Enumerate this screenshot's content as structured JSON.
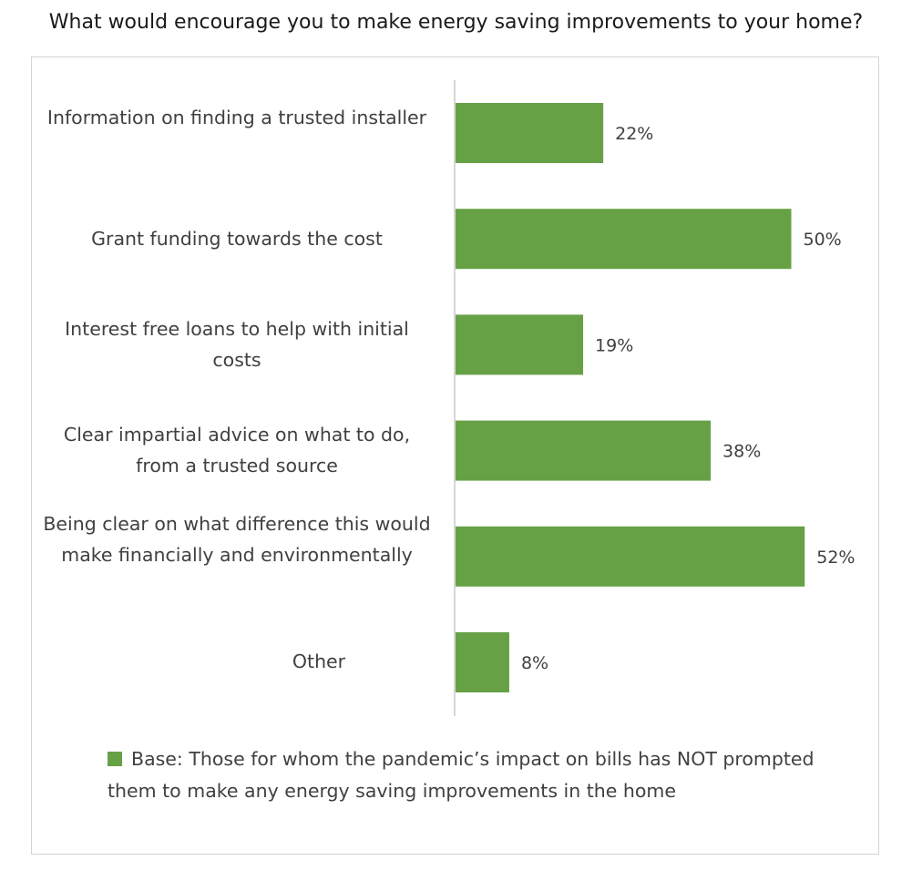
{
  "colors": {
    "bar": "#67a146",
    "axis": "#c8c8c8",
    "frame": "#d4d4d4",
    "text": "#404040"
  },
  "chart_data": {
    "type": "bar",
    "orientation": "horizontal",
    "title": "What would encourage you to make energy saving improvements to your home?",
    "categories": [
      "Information on finding a trusted installer",
      "Grant funding towards the cost",
      "Interest free loans to help with initial costs",
      "Clear impartial advice on what to do, from a trusted source",
      "Being clear on what difference this would make financially and environmentally",
      "Other"
    ],
    "series": [
      {
        "name": "Base: Those for whom the pandemic’s impact on bills has NOT prompted them to make any energy saving improvements in the home",
        "values": [
          22,
          50,
          19,
          38,
          52,
          8
        ]
      }
    ],
    "data_labels": [
      "22%",
      "50%",
      "19%",
      "38%",
      "52%",
      "8%"
    ],
    "value_unit": "%",
    "xlim": [
      0,
      60
    ],
    "grid": false,
    "legend_position": "bottom"
  }
}
